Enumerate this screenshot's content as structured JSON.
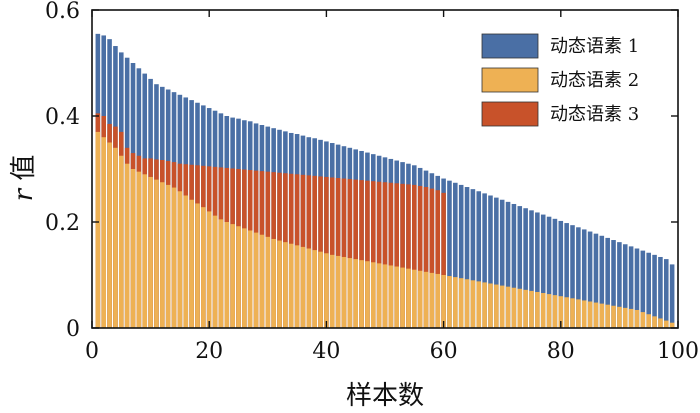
{
  "chart_data": {
    "type": "bar",
    "stacking": "overlay",
    "title": "",
    "xlabel": "样本数",
    "ylabel_italic": "r",
    "ylabel_rest": " 值",
    "xlim": [
      0,
      100
    ],
    "ylim": [
      0,
      0.6
    ],
    "xticks": [
      0,
      20,
      40,
      60,
      80,
      100
    ],
    "yticks": [
      0,
      0.2,
      0.4,
      0.6
    ],
    "ytick_labels": [
      "0",
      "0.2",
      "0.4",
      "0.6"
    ],
    "legend_position": "top-right",
    "series": [
      {
        "name": "动态语素 1",
        "color": "#4a6fa5",
        "values": [
          0.555,
          0.552,
          0.545,
          0.532,
          0.52,
          0.51,
          0.5,
          0.49,
          0.48,
          0.47,
          0.46,
          0.455,
          0.45,
          0.445,
          0.44,
          0.435,
          0.43,
          0.425,
          0.42,
          0.415,
          0.41,
          0.405,
          0.4,
          0.397,
          0.395,
          0.392,
          0.39,
          0.386,
          0.383,
          0.38,
          0.377,
          0.374,
          0.371,
          0.368,
          0.366,
          0.363,
          0.36,
          0.358,
          0.355,
          0.352,
          0.349,
          0.346,
          0.343,
          0.34,
          0.337,
          0.334,
          0.331,
          0.328,
          0.325,
          0.322,
          0.319,
          0.316,
          0.313,
          0.31,
          0.307,
          0.302,
          0.297,
          0.292,
          0.287,
          0.282,
          0.278,
          0.274,
          0.27,
          0.266,
          0.262,
          0.258,
          0.254,
          0.25,
          0.246,
          0.242,
          0.238,
          0.234,
          0.23,
          0.226,
          0.222,
          0.218,
          0.214,
          0.21,
          0.206,
          0.202,
          0.198,
          0.194,
          0.19,
          0.186,
          0.182,
          0.178,
          0.174,
          0.17,
          0.166,
          0.162,
          0.158,
          0.154,
          0.15,
          0.146,
          0.142,
          0.138,
          0.134,
          0.13,
          0.12
        ]
      },
      {
        "name": "动态语素 2",
        "color": "#eeb154",
        "values": [
          0.37,
          0.36,
          0.35,
          0.34,
          0.325,
          0.31,
          0.3,
          0.295,
          0.29,
          0.285,
          0.28,
          0.275,
          0.27,
          0.265,
          0.258,
          0.25,
          0.242,
          0.235,
          0.228,
          0.22,
          0.212,
          0.205,
          0.2,
          0.196,
          0.192,
          0.188,
          0.184,
          0.18,
          0.176,
          0.172,
          0.168,
          0.165,
          0.162,
          0.159,
          0.156,
          0.153,
          0.15,
          0.147,
          0.144,
          0.141,
          0.138,
          0.136,
          0.134,
          0.132,
          0.13,
          0.128,
          0.126,
          0.124,
          0.122,
          0.12,
          0.118,
          0.116,
          0.114,
          0.112,
          0.11,
          0.108,
          0.106,
          0.104,
          0.102,
          0.1,
          0.098,
          0.096,
          0.094,
          0.092,
          0.09,
          0.088,
          0.086,
          0.084,
          0.082,
          0.08,
          0.078,
          0.076,
          0.074,
          0.072,
          0.07,
          0.068,
          0.066,
          0.064,
          0.062,
          0.06,
          0.058,
          0.056,
          0.054,
          0.052,
          0.05,
          0.048,
          0.046,
          0.044,
          0.042,
          0.04,
          0.038,
          0.036,
          0.034,
          0.03,
          0.026,
          0.022,
          0.018,
          0.014,
          0.01
        ]
      },
      {
        "name": "动态语素 3",
        "color": "#c8522a",
        "values": [
          0.405,
          0.4,
          0.385,
          0.38,
          0.37,
          0.34,
          0.33,
          0.325,
          0.32,
          0.32,
          0.318,
          0.317,
          0.315,
          0.313,
          0.31,
          0.309,
          0.308,
          0.307,
          0.306,
          0.305,
          0.304,
          0.303,
          0.302,
          0.301,
          0.3,
          0.299,
          0.298,
          0.297,
          0.296,
          0.295,
          0.294,
          0.293,
          0.292,
          0.291,
          0.29,
          0.289,
          0.288,
          0.287,
          0.286,
          0.285,
          0.284,
          0.283,
          0.282,
          0.281,
          0.28,
          0.279,
          0.278,
          0.277,
          0.276,
          0.275,
          0.274,
          0.273,
          0.272,
          0.271,
          0.27,
          0.268,
          0.266,
          0.263,
          0.26,
          0.255
        ]
      }
    ]
  }
}
